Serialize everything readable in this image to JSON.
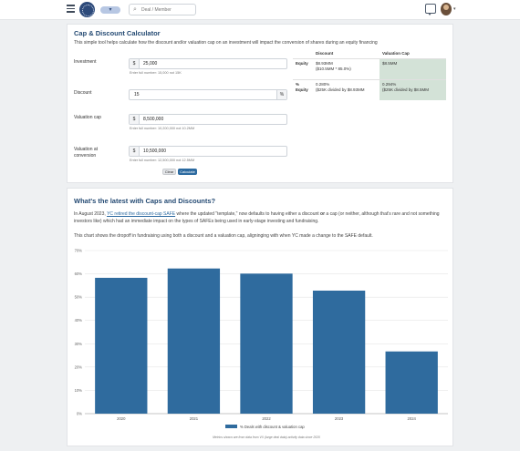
{
  "nav": {
    "search_placeholder": "Deal / Member",
    "pill_label": "▾"
  },
  "calculator": {
    "title": "Cap & Discount Calculator",
    "description": "This simple tool helps calculate how the discount and/or valuation cap on an investment will impact the conversion of shares during an equity financing",
    "investment": {
      "label": "Investment",
      "prefix": "$",
      "value": "25,000",
      "hint": "Enter full number: 15,000 not 15K"
    },
    "discount": {
      "label": "Discount",
      "value": "15",
      "suffix": "%"
    },
    "valuation_cap": {
      "label": "Valuation cap",
      "prefix": "$",
      "value": "8,500,000",
      "hint": "Enter full number: 10,200,000 not 10.2MM"
    },
    "valuation_at_conversion": {
      "label_line1": "Valuation at",
      "label_line2": "conversion",
      "prefix": "$",
      "value": "10,500,000",
      "hint": "Enter full number: 12,500,000 not 12.5MM"
    },
    "clear_label": "Clear",
    "calculate_label": "Calculate",
    "results": {
      "col_discount": "Discount",
      "col_cap": "Valuation Cap",
      "rows": [
        {
          "label": "Equity",
          "discount_line1": "$8.93MM",
          "discount_line2": "($10.5MM * 85.0%)",
          "cap_line1": "$8.5MM",
          "cap_line2": ""
        },
        {
          "label": "% Equity",
          "discount_line1": "0.280%",
          "discount_line2": "($25K divided by $8.93MM",
          "cap_line1": "0.294%",
          "cap_line2": "($25K divided by $8.5MM"
        }
      ]
    }
  },
  "article": {
    "title": "What's the latest with Caps and Discounts?",
    "p1_before": "In August 2023, ",
    "p1_link": "YC retired the discount-cap SAFE",
    "p1_after": " where the updated \"template,\" now defaults to having either a discount ",
    "p1_or": "or",
    "p1_end": " a cap (or neither, although that's rare and not something investors like) which had an immediate impact on the types of SAFEs being used in early-stage investing and fundraising.",
    "p2": "This chart shows the dropoff in fundraising using both a discount and a valuation cap, aligninging with when YC made a change to the SAFE default."
  },
  "chart_data": {
    "type": "bar",
    "categories": [
      "2020",
      "2021",
      "2022",
      "2023",
      "2024"
    ],
    "series": [
      {
        "name": "% Deals with discount & valuation cap",
        "values": [
          58.3,
          62.3,
          60.1,
          52.8,
          26.7
        ],
        "color": "#2f6b9e"
      }
    ],
    "ylim": [
      0,
      70
    ],
    "yticks": [
      "0%",
      "10%",
      "20%",
      "30%",
      "40%",
      "50%",
      "60%",
      "70%"
    ],
    "grid": true,
    "legend": "bottom",
    "footnote": "Metrics shown are from data from VX (large deal data) activity data since 2020"
  }
}
